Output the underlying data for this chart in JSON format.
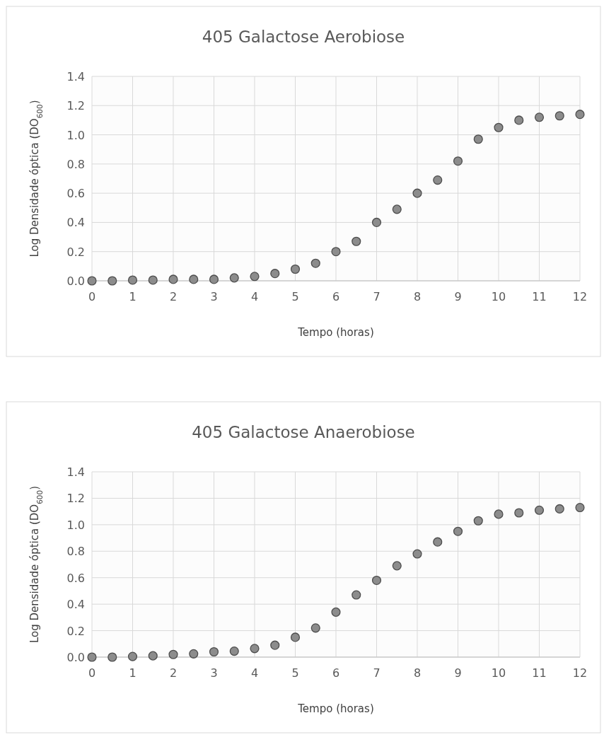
{
  "chart_data": [
    {
      "type": "scatter",
      "title": "405 Galactose  Aerobiose",
      "xlabel": "Tempo (horas)",
      "ylabel": "Log Densidade óptica (DO$_{600}$)",
      "xlim": [
        0,
        12
      ],
      "xticks": [
        0,
        1,
        2,
        3,
        4,
        5,
        6,
        7,
        8,
        9,
        10,
        11,
        12
      ],
      "ylim": [
        0,
        1.4
      ],
      "yticks": [
        {
          "value": 0,
          "label": "0.0"
        },
        {
          "value": 0.2,
          "label": "0.2"
        },
        {
          "value": 0.4,
          "label": "0.4"
        },
        {
          "value": 0.6,
          "label": "0.6"
        },
        {
          "value": 0.8,
          "label": "0.8"
        },
        {
          "value": 1,
          "label": "1.0"
        },
        {
          "value": 1.2,
          "label": "1.2"
        },
        {
          "value": 1.4,
          "label": "1.4"
        }
      ],
      "grid": true,
      "marker": "circle",
      "x": [
        0,
        0.5,
        1,
        1.5,
        2,
        2.5,
        3,
        3.5,
        4,
        4.5,
        5,
        5.5,
        6,
        6.5,
        7,
        7.5,
        8,
        8.5,
        9,
        9.5,
        10,
        10.5,
        11,
        11.5,
        12
      ],
      "series": [
        {
          "color": "#8c8c8c",
          "values": [
            0,
            0,
            0.005,
            0.005,
            0.01,
            0.01,
            0.01,
            0.02,
            0.03,
            0.05,
            0.08,
            0.12,
            0.2,
            0.27,
            0.4,
            0.49,
            0.6,
            0.69,
            0.82,
            0.97,
            1.05,
            1.1,
            1.12,
            1.13,
            1.14
          ]
        }
      ]
    },
    {
      "type": "scatter",
      "title": "405 Galactose  Anaerobiose",
      "xlabel": "Tempo (horas)",
      "ylabel": "Log Densidade óptica (DO$_{600}$)",
      "xlim": [
        0,
        12
      ],
      "xticks": [
        0,
        1,
        2,
        3,
        4,
        5,
        6,
        7,
        8,
        9,
        10,
        11,
        12
      ],
      "ylim": [
        0,
        1.4
      ],
      "yticks": [
        {
          "value": 0,
          "label": "0.0"
        },
        {
          "value": 0.2,
          "label": "0.2"
        },
        {
          "value": 0.4,
          "label": "0.4"
        },
        {
          "value": 0.6,
          "label": "0.6"
        },
        {
          "value": 0.8,
          "label": "0.8"
        },
        {
          "value": 1,
          "label": "1.0"
        },
        {
          "value": 1.2,
          "label": "1.2"
        },
        {
          "value": 1.4,
          "label": "1.4"
        }
      ],
      "grid": true,
      "marker": "circle",
      "x": [
        0,
        0.5,
        1,
        1.5,
        2,
        2.5,
        3,
        3.5,
        4,
        4.5,
        5,
        5.5,
        6,
        6.5,
        7,
        7.5,
        8,
        8.5,
        9,
        9.5,
        10,
        10.5,
        11,
        11.5,
        12
      ],
      "series": [
        {
          "color": "#8c8c8c",
          "values": [
            0,
            0,
            0.005,
            0.01,
            0.02,
            0.025,
            0.04,
            0.045,
            0.065,
            0.09,
            0.15,
            0.22,
            0.34,
            0.47,
            0.58,
            0.69,
            0.78,
            0.87,
            0.95,
            1.03,
            1.08,
            1.09,
            1.11,
            1.12,
            1.13
          ]
        }
      ]
    }
  ]
}
